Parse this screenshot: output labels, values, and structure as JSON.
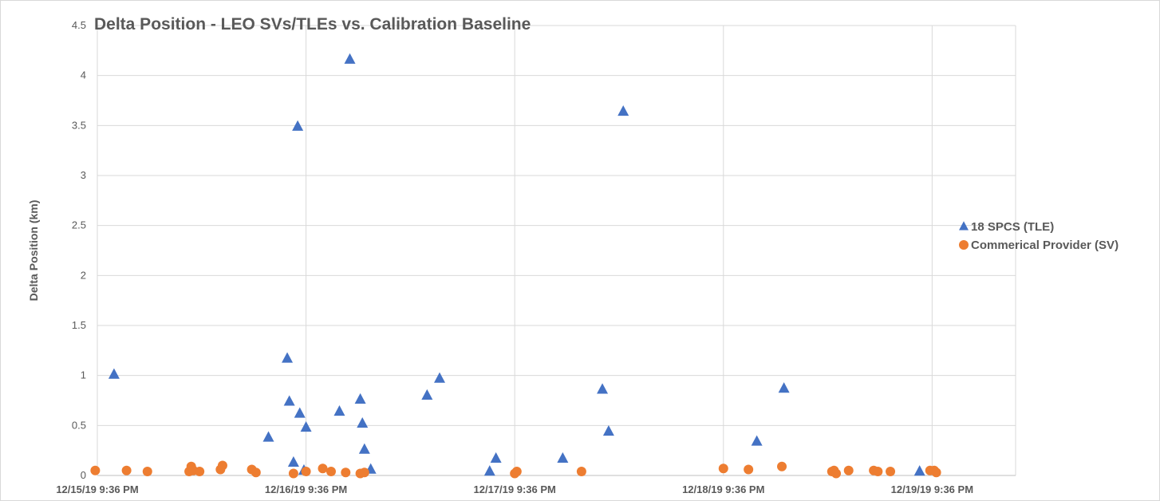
{
  "chart_data": {
    "type": "scatter",
    "title": "Delta Position - LEO SVs/TLEs vs. Calibration Baseline",
    "xlabel": "",
    "ylabel": "Delta Position (km)",
    "ylim": [
      0,
      4.5
    ],
    "yticks": [
      "0",
      "0.5",
      "1",
      "1.5",
      "2",
      "2.5",
      "3",
      "3.5",
      "4",
      "4.5"
    ],
    "xlim": [
      0,
      4.4
    ],
    "xtick_values": [
      0,
      1,
      2,
      3,
      4
    ],
    "xtick_labels": [
      "12/15/19 9:36 PM",
      "12/16/19 9:36 PM",
      "12/17/19 9:36 PM",
      "12/18/19 9:36 PM",
      "12/19/19 9:36 PM"
    ],
    "x_units": "days since 12/15/19 9:36 PM",
    "grid": true,
    "legend_position": "right",
    "series": [
      {
        "name": "18 SPCS (TLE)",
        "color": "#4472C4",
        "marker": "triangle",
        "points": [
          [
            0.08,
            1.01
          ],
          [
            0.82,
            0.38
          ],
          [
            0.91,
            1.17
          ],
          [
            0.92,
            0.74
          ],
          [
            0.94,
            0.13
          ],
          [
            0.96,
            3.49
          ],
          [
            0.97,
            0.62
          ],
          [
            0.99,
            0.05
          ],
          [
            1.0,
            0.48
          ],
          [
            1.16,
            0.64
          ],
          [
            1.21,
            4.16
          ],
          [
            1.26,
            0.76
          ],
          [
            1.27,
            0.52
          ],
          [
            1.28,
            0.26
          ],
          [
            1.31,
            0.06
          ],
          [
            1.58,
            0.8
          ],
          [
            1.64,
            0.97
          ],
          [
            1.88,
            0.04
          ],
          [
            1.91,
            0.17
          ],
          [
            2.23,
            0.17
          ],
          [
            2.42,
            0.86
          ],
          [
            2.45,
            0.44
          ],
          [
            2.52,
            3.64
          ],
          [
            3.16,
            0.34
          ],
          [
            3.29,
            0.87
          ],
          [
            3.94,
            0.04
          ]
        ]
      },
      {
        "name": "Commerical Provider (SV)",
        "color": "#ED7D31",
        "marker": "circle",
        "points": [
          [
            -0.01,
            0.05
          ],
          [
            0.14,
            0.05
          ],
          [
            0.24,
            0.04
          ],
          [
            0.44,
            0.04
          ],
          [
            0.45,
            0.09
          ],
          [
            0.46,
            0.05
          ],
          [
            0.49,
            0.04
          ],
          [
            0.59,
            0.06
          ],
          [
            0.6,
            0.1
          ],
          [
            0.74,
            0.06
          ],
          [
            0.76,
            0.03
          ],
          [
            0.94,
            0.02
          ],
          [
            1.0,
            0.04
          ],
          [
            1.08,
            0.07
          ],
          [
            1.12,
            0.04
          ],
          [
            1.19,
            0.03
          ],
          [
            1.26,
            0.02
          ],
          [
            1.28,
            0.03
          ],
          [
            2.0,
            0.02
          ],
          [
            2.01,
            0.04
          ],
          [
            2.32,
            0.04
          ],
          [
            3.0,
            0.07
          ],
          [
            3.12,
            0.06
          ],
          [
            3.28,
            0.09
          ],
          [
            3.52,
            0.04
          ],
          [
            3.53,
            0.05
          ],
          [
            3.54,
            0.02
          ],
          [
            3.6,
            0.05
          ],
          [
            3.72,
            0.05
          ],
          [
            3.74,
            0.04
          ],
          [
            3.8,
            0.04
          ],
          [
            3.99,
            0.05
          ],
          [
            4.01,
            0.05
          ],
          [
            4.02,
            0.03
          ]
        ]
      }
    ]
  }
}
